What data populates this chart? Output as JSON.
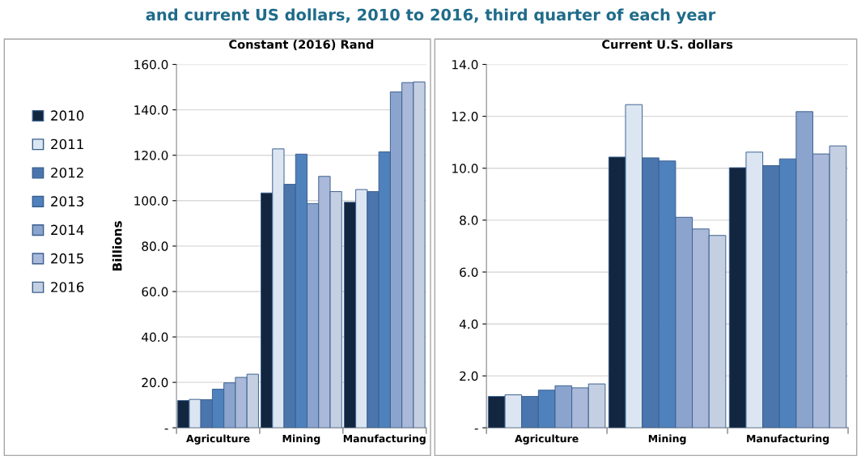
{
  "chart_data": [
    {
      "type": "bar",
      "title": "Constant (2016) Rand",
      "ylabel": "Billions",
      "annotations": [
        "and current US dollars, 2010 to 2016, third quarter of each year"
      ],
      "categories": [
        "Agriculture",
        "Mining",
        "Manufacturing"
      ],
      "series": [
        {
          "name": "2010",
          "color": "#12263f",
          "values": [
            12.0,
            103.4,
            99.3
          ]
        },
        {
          "name": "2011",
          "color": "#dce6f2",
          "values": [
            12.5,
            122.8,
            104.9
          ]
        },
        {
          "name": "2012",
          "color": "#4a76ad",
          "values": [
            12.4,
            107.2,
            104.0
          ]
        },
        {
          "name": "2013",
          "color": "#4f81bd",
          "values": [
            17.0,
            120.5,
            121.5
          ]
        },
        {
          "name": "2014",
          "color": "#8aa4cd",
          "values": [
            19.8,
            98.7,
            147.9
          ]
        },
        {
          "name": "2015",
          "color": "#aab9d9",
          "values": [
            22.2,
            110.7,
            152.0
          ]
        },
        {
          "name": "2016",
          "color": "#c4cfe2",
          "values": [
            23.6,
            104.0,
            152.3
          ]
        }
      ],
      "ylim": [
        0,
        160
      ],
      "yticks": [
        {
          "value": 0,
          "label": "-"
        },
        {
          "value": 20,
          "label": "20.0"
        },
        {
          "value": 40,
          "label": "40.0"
        },
        {
          "value": 60,
          "label": "60.0"
        },
        {
          "value": 80,
          "label": "80.0"
        },
        {
          "value": 100,
          "label": "100.0"
        },
        {
          "value": 120,
          "label": "120.0"
        },
        {
          "value": 140,
          "label": "140.0"
        },
        {
          "value": 160,
          "label": "160.0"
        }
      ],
      "grid": "y",
      "legend": "left"
    },
    {
      "type": "bar",
      "title": "Current U.S. dollars",
      "categories": [
        "Agriculture",
        "Mining",
        "Manufacturing"
      ],
      "series": [
        {
          "color": "#12263f",
          "values": [
            1.21,
            10.43,
            10.02
          ]
        },
        {
          "color": "#dce6f2",
          "values": [
            1.27,
            12.45,
            10.62
          ]
        },
        {
          "color": "#4a76ad",
          "values": [
            1.21,
            10.4,
            10.1
          ]
        },
        {
          "color": "#4f81bd",
          "values": [
            1.45,
            10.28,
            10.36
          ]
        },
        {
          "color": "#8aa4cd",
          "values": [
            1.62,
            8.11,
            12.18
          ]
        },
        {
          "color": "#aab9d9",
          "values": [
            1.54,
            7.66,
            10.55
          ]
        },
        {
          "color": "#c4cfe2",
          "values": [
            1.69,
            7.41,
            10.86
          ]
        }
      ],
      "ylim": [
        0,
        14
      ],
      "yticks": [
        {
          "value": 0,
          "label": "-"
        },
        {
          "value": 2,
          "label": "2.0"
        },
        {
          "value": 4,
          "label": "4.0"
        },
        {
          "value": 6,
          "label": "6.0"
        },
        {
          "value": 8,
          "label": "8.0"
        },
        {
          "value": 10,
          "label": "10.0"
        },
        {
          "value": 12,
          "label": "12.0"
        },
        {
          "value": 14,
          "label": "14.0"
        }
      ],
      "grid": "y"
    }
  ]
}
